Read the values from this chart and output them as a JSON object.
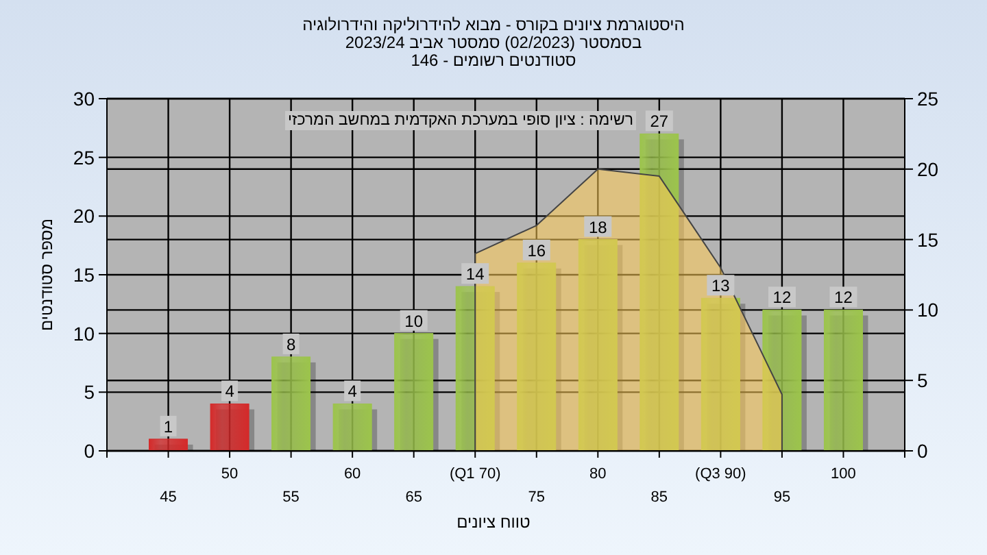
{
  "chart_data": {
    "type": "bar",
    "title": "היסטוגרמת ציונים בקורס - מבוא להידרוליקה והידרולוגיה",
    "subtitle": "בסמסטר  (02/2023)  סמסטר אביב 2023/24\nסטודנטים רשומים - 146",
    "xlabel": "טווח ציונים",
    "ylabel": "מספר סטודנטים",
    "annotations": [
      "רשימה : ציון סופי במערכת האקדמית במחשב המרכזי"
    ],
    "categories": [
      "45",
      "50",
      "55",
      "60",
      "65",
      "(Q1 70)",
      "75",
      "80",
      "85",
      "(Q3 90)",
      "95",
      "100"
    ],
    "series": [
      {
        "colors": [
          "#d42a2a",
          "#d42a2a",
          "#9cc44c",
          "#9cc44c",
          "#9cc44c",
          "#9cc44c",
          "#9cc44c",
          "#9cc44c",
          "#9cc44c",
          "#9cc44c",
          "#9cc44c",
          "#9cc44c"
        ],
        "values": [
          1,
          4,
          8,
          4,
          10,
          14,
          16,
          18,
          27,
          13,
          12,
          12
        ],
        "value_labels": [
          "1",
          "4",
          "8",
          "4",
          "10",
          "14",
          "16",
          "18",
          "27",
          "13",
          "12",
          "12"
        ]
      },
      {
        "type": "area",
        "axis": "y2",
        "color": "#ffcc55",
        "values": [
          null,
          null,
          null,
          null,
          null,
          14,
          16,
          20,
          19.5,
          13,
          4,
          null
        ]
      }
    ],
    "ylim": [
      0,
      30
    ],
    "yticks": [
      0,
      5,
      10,
      15,
      20,
      25,
      30
    ],
    "y2lim": [
      0,
      25
    ],
    "y2ticks": [
      0,
      5,
      10,
      15,
      20,
      25
    ],
    "grid": true
  }
}
